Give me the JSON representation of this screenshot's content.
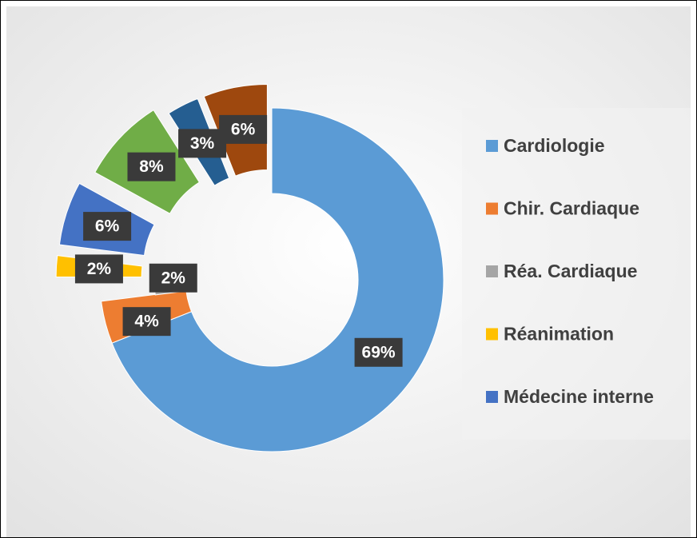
{
  "chart_data": {
    "type": "donut",
    "categories": [
      "Cardiologie",
      "Chir. Cardiaque",
      "Réa. Cardiaque",
      "Réanimation",
      "Médecine interne",
      null,
      null,
      null
    ],
    "values": [
      69,
      4,
      2,
      2,
      6,
      8,
      3,
      6
    ],
    "value_labels": [
      "69%",
      "4%",
      "2%",
      "2%",
      "6%",
      "8%",
      "3%",
      "6%"
    ],
    "colors": [
      "#5b9bd5",
      "#ed7d31",
      "#a5a5a5",
      "#ffc000",
      "#4472c4",
      "#70ad47",
      "#255e91",
      "#9e480e"
    ],
    "legend": "right"
  }
}
